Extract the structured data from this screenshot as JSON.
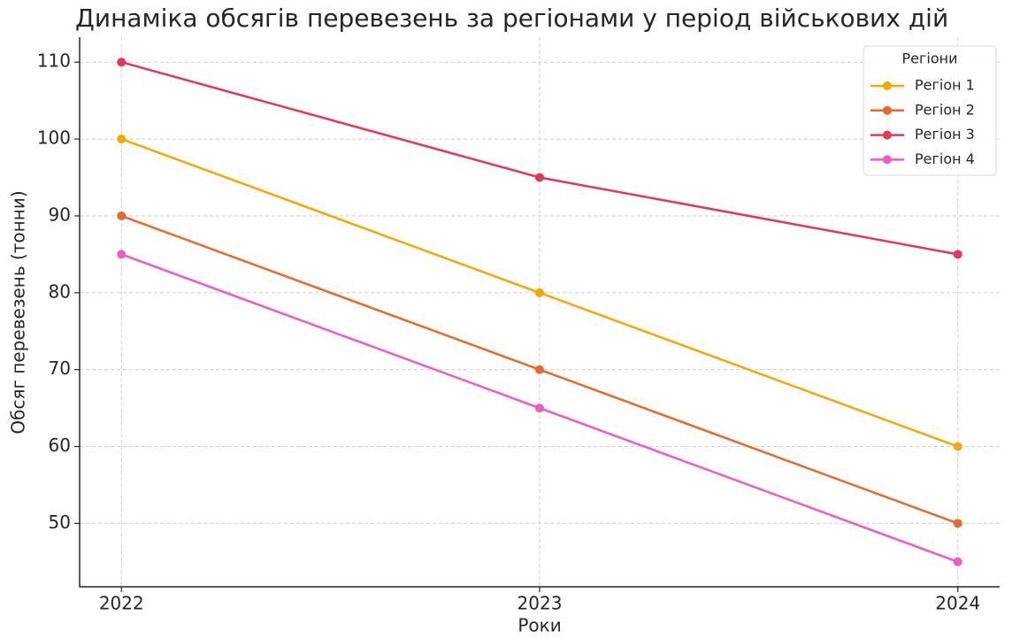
{
  "chart_data": {
    "type": "line",
    "title": "Динаміка обсягів перевезень за регіонами у період військових дій",
    "x_label": "Роки",
    "y_label": "Обсяг перевезень (тонни)",
    "x": [
      2022,
      2023,
      2024
    ],
    "series": [
      {
        "name": "Регіон 1",
        "color": "#f5a800",
        "values": [
          100,
          80,
          60
        ]
      },
      {
        "name": "Регіон 2",
        "color": "#e8692a",
        "values": [
          90,
          70,
          50
        ]
      },
      {
        "name": "Регіон 3",
        "color": "#e8365a",
        "values": [
          110,
          95,
          85
        ]
      },
      {
        "name": "Регіон 4",
        "color": "#ee5bc9",
        "values": [
          85,
          65,
          45
        ]
      }
    ],
    "xlim": [
      2021.9,
      2024.1
    ],
    "xticks": [
      2022,
      2023,
      2024
    ],
    "ylim": [
      41.75,
      113.25
    ],
    "yticks": [
      50,
      60,
      70,
      80,
      90,
      100,
      110
    ],
    "grid": true,
    "legend_title": "Регіони",
    "legend_position": "upper right"
  }
}
